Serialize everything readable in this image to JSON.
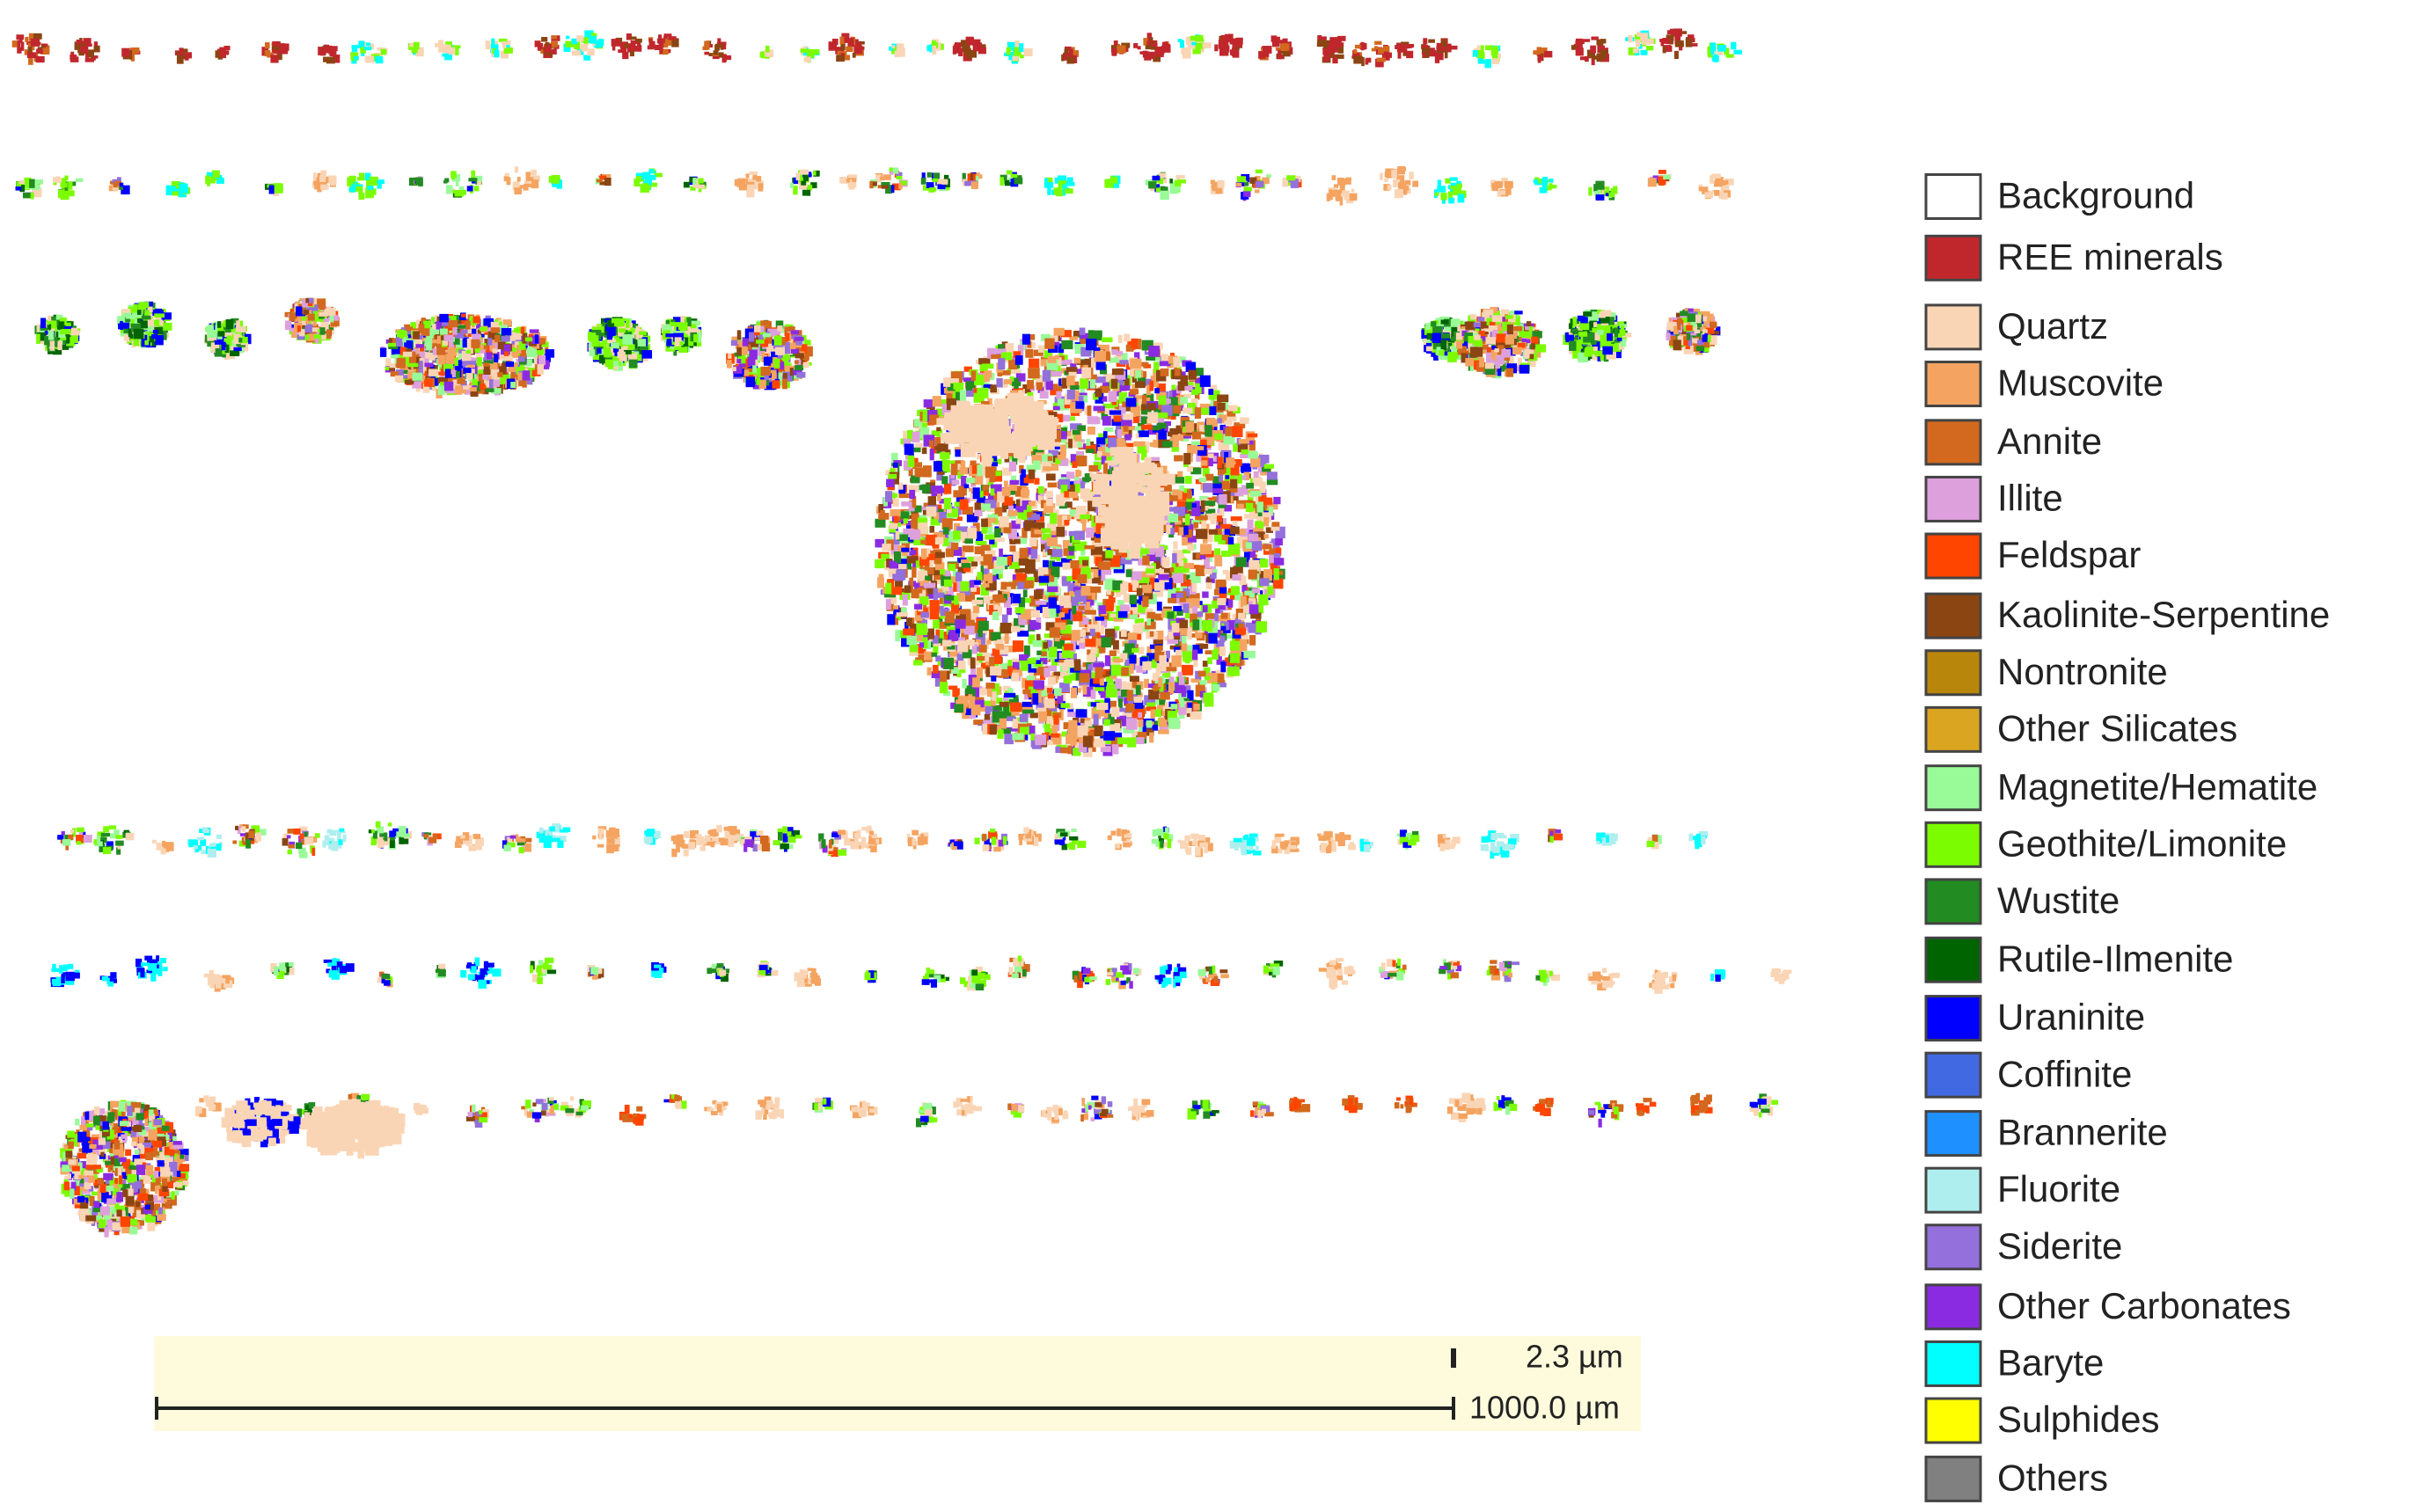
{
  "legend": {
    "items": [
      {
        "label": "Background",
        "color": "#ffffff"
      },
      {
        "label": "REE minerals",
        "color": "#c0272d"
      },
      {
        "label": "Quartz",
        "color": "#fad5b5"
      },
      {
        "label": "Muscovite",
        "color": "#f4a460"
      },
      {
        "label": "Annite",
        "color": "#d2691e"
      },
      {
        "label": "Illite",
        "color": "#dda0dd"
      },
      {
        "label": "Feldspar",
        "color": "#ff4500"
      },
      {
        "label": "Kaolinite-Serpentine",
        "color": "#8b4513"
      },
      {
        "label": "Nontronite",
        "color": "#b8860b"
      },
      {
        "label": "Other Silicates",
        "color": "#daa520"
      },
      {
        "label": "Magnetite/Hematite",
        "color": "#98fb98"
      },
      {
        "label": "Geothite/Limonite",
        "color": "#7cfc00"
      },
      {
        "label": "Wustite",
        "color": "#228b22"
      },
      {
        "label": "Rutile-Ilmenite",
        "color": "#006400"
      },
      {
        "label": "Uraninite",
        "color": "#0000ff"
      },
      {
        "label": "Coffinite",
        "color": "#4169e1"
      },
      {
        "label": "Brannerite",
        "color": "#1e90ff"
      },
      {
        "label": "Fluorite",
        "color": "#afeeee"
      },
      {
        "label": "Siderite",
        "color": "#9370db"
      },
      {
        "label": "Other Carbonates",
        "color": "#8a2be2"
      },
      {
        "label": "Baryte",
        "color": "#00ffff"
      },
      {
        "label": "Sulphides",
        "color": "#ffff00"
      },
      {
        "label": "Others",
        "color": "#808080"
      }
    ]
  },
  "scale_bar": {
    "labels": [
      "2.3 µm",
      "1000.0 µm"
    ]
  }
}
